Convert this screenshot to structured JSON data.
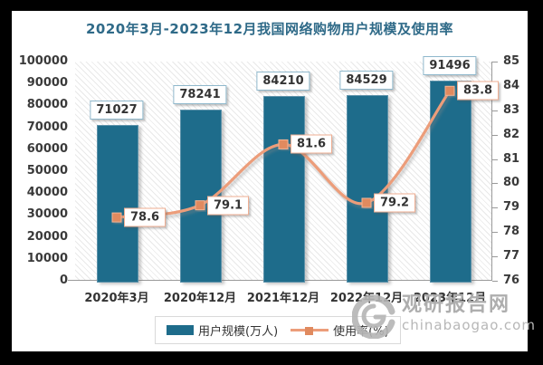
{
  "title": "2020年3月-2023年12月我国网络购物用户规模及使用率",
  "chart_data": {
    "type": "bar+line",
    "title": "2020年3月-2023年12月我国网络购物用户规模及使用率",
    "categories": [
      "2020年3月",
      "2020年12月",
      "2021年12月",
      "2022年12月",
      "2023年12月"
    ],
    "series": [
      {
        "name": "用户规模(万人)",
        "type": "bar",
        "axis": "left",
        "values": [
          71027,
          78241,
          84210,
          84529,
          91496
        ],
        "color": "#1e6c8b"
      },
      {
        "name": "使用率(%)",
        "type": "line",
        "axis": "right",
        "values": [
          78.6,
          79.1,
          81.6,
          79.2,
          83.8
        ],
        "color": "#ec9d7a",
        "marker_color": "#e08a5f"
      }
    ],
    "left_axis": {
      "min": 0,
      "max": 100000,
      "step": 10000
    },
    "right_axis": {
      "min": 76,
      "max": 85,
      "step": 1
    },
    "legend_position": "bottom",
    "grid": false,
    "plot_background": "diagonal-hatch"
  },
  "colors": {
    "title": "#2f6a88",
    "bar": "#1e6c8b",
    "line": "#ec9d7a",
    "marker": "#e08a5f",
    "axis_text": "#3a3a3a"
  },
  "watermark": {
    "name": "观研报告网",
    "domain": "chinabaogao.com"
  }
}
